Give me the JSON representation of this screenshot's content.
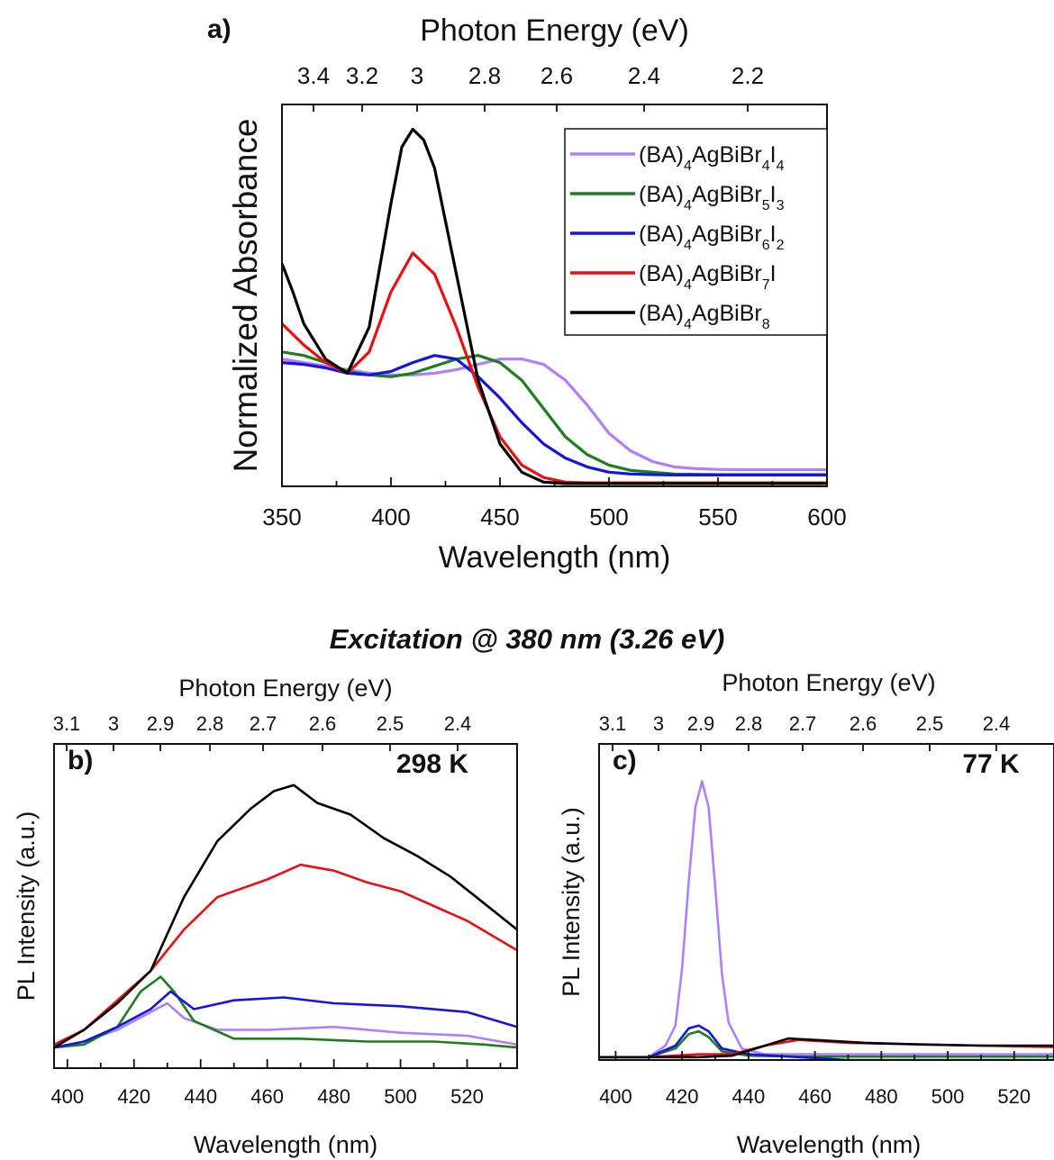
{
  "figure": {
    "heading": "Excitation @ 380 nm (3.26 eV)"
  },
  "chart_data": [
    {
      "id": "a",
      "type": "line",
      "panel_label": "a)",
      "xlabel": "Wavelength (nm)",
      "ylabel": "Normalized Absorbance",
      "top_axis_label": "Photon Energy (eV)",
      "xlim": [
        350,
        600
      ],
      "ylim": [
        0,
        1.08
      ],
      "x_ticks": [
        "350",
        "400",
        "450",
        "500",
        "550",
        "600"
      ],
      "top_ticks": [
        "3.4",
        "3.2",
        "3",
        "2.8",
        "2.6",
        "2.4",
        "2.2"
      ],
      "legend": "top-right",
      "series": [
        {
          "name": "(BA)4AgBiBr4I4",
          "label_main": "(BA)",
          "label_parts": [
            [
              "4",
              "AgBiBr"
            ],
            [
              "4",
              "I"
            ],
            [
              "4",
              ""
            ]
          ],
          "color": "#b07fff",
          "x": [
            350,
            360,
            370,
            380,
            390,
            400,
            410,
            420,
            430,
            440,
            450,
            460,
            470,
            480,
            490,
            500,
            510,
            520,
            530,
            540,
            550,
            560,
            570,
            580,
            590,
            600
          ],
          "y": [
            0.36,
            0.35,
            0.34,
            0.33,
            0.32,
            0.315,
            0.315,
            0.32,
            0.33,
            0.345,
            0.36,
            0.36,
            0.345,
            0.3,
            0.23,
            0.15,
            0.1,
            0.07,
            0.055,
            0.05,
            0.048,
            0.047,
            0.047,
            0.047,
            0.047,
            0.047
          ]
        },
        {
          "name": "(BA)4AgBiBr5I3",
          "label_main": "(BA)",
          "label_parts": [
            [
              "4",
              "AgBiBr"
            ],
            [
              "5",
              "I"
            ],
            [
              "3",
              ""
            ]
          ],
          "color": "#1e7d1e",
          "x": [
            350,
            360,
            370,
            380,
            390,
            400,
            410,
            420,
            430,
            440,
            450,
            460,
            470,
            480,
            490,
            500,
            510,
            520,
            530,
            540,
            550,
            560,
            570,
            580,
            590,
            600
          ],
          "y": [
            0.38,
            0.37,
            0.35,
            0.325,
            0.315,
            0.31,
            0.32,
            0.34,
            0.36,
            0.37,
            0.35,
            0.3,
            0.22,
            0.14,
            0.09,
            0.06,
            0.045,
            0.04,
            0.035,
            0.034,
            0.033,
            0.033,
            0.033,
            0.033,
            0.033,
            0.033
          ]
        },
        {
          "name": "(BA)4AgBiBr6I2",
          "label_main": "(BA)",
          "label_parts": [
            [
              "4",
              "AgBiBr"
            ],
            [
              "6",
              "I"
            ],
            [
              "2",
              ""
            ]
          ],
          "color": "#1515e0",
          "x": [
            350,
            360,
            370,
            380,
            390,
            400,
            410,
            420,
            430,
            440,
            450,
            460,
            470,
            480,
            490,
            500,
            510,
            520,
            530,
            540,
            550,
            560,
            570,
            580,
            590,
            600
          ],
          "y": [
            0.35,
            0.345,
            0.335,
            0.32,
            0.315,
            0.325,
            0.35,
            0.37,
            0.36,
            0.31,
            0.25,
            0.18,
            0.12,
            0.08,
            0.055,
            0.04,
            0.035,
            0.033,
            0.032,
            0.032,
            0.032,
            0.032,
            0.032,
            0.032,
            0.032,
            0.032
          ]
        },
        {
          "name": "(BA)4AgBiBr7I",
          "label_main": "(BA)",
          "label_parts": [
            [
              "4",
              "AgBiBr"
            ],
            [
              "7",
              "I"
            ]
          ],
          "color": "#e81010",
          "x": [
            350,
            360,
            370,
            380,
            390,
            400,
            410,
            420,
            430,
            440,
            450,
            460,
            470,
            480,
            490,
            500,
            510,
            520,
            530,
            540,
            550,
            560,
            570,
            580,
            590,
            600
          ],
          "y": [
            0.46,
            0.4,
            0.35,
            0.32,
            0.38,
            0.55,
            0.66,
            0.6,
            0.45,
            0.28,
            0.14,
            0.06,
            0.025,
            0.012,
            0.01,
            0.01,
            0.01,
            0.01,
            0.01,
            0.01,
            0.01,
            0.01,
            0.01,
            0.01,
            0.01,
            0.01
          ]
        },
        {
          "name": "(BA)4AgBiBr8",
          "label_main": "(BA)",
          "label_parts": [
            [
              "4",
              "AgBiBr"
            ],
            [
              "8",
              ""
            ]
          ],
          "color": "#000000",
          "x": [
            350,
            355,
            360,
            370,
            380,
            390,
            400,
            405,
            410,
            415,
            420,
            430,
            440,
            450,
            460,
            470,
            480,
            490,
            500,
            510,
            520,
            530,
            540,
            550,
            560,
            570,
            580,
            590,
            600
          ],
          "y": [
            0.63,
            0.55,
            0.46,
            0.36,
            0.32,
            0.45,
            0.8,
            0.96,
            1.01,
            0.98,
            0.9,
            0.6,
            0.3,
            0.12,
            0.04,
            0.012,
            0.008,
            0.008,
            0.008,
            0.008,
            0.008,
            0.008,
            0.008,
            0.008,
            0.008,
            0.008,
            0.008,
            0.008,
            0.008
          ]
        }
      ]
    },
    {
      "id": "b",
      "type": "line",
      "panel_label": "b)",
      "annotation": "298 K",
      "xlabel": "Wavelength (nm)",
      "ylabel": "PL Intensity (a.u.)",
      "top_axis_label": "Photon Energy (eV)",
      "xlim": [
        396,
        535
      ],
      "ylim": [
        0,
        1.1
      ],
      "x_ticks": [
        "400",
        "420",
        "440",
        "460",
        "480",
        "500",
        "520"
      ],
      "top_ticks": [
        "3.1",
        "3",
        "2.9",
        "2.8",
        "2.7",
        "2.6",
        "2.5",
        "2.4"
      ],
      "series": [
        {
          "color": "#b07fff",
          "x": [
            396,
            405,
            415,
            425,
            430,
            435,
            445,
            460,
            480,
            500,
            520,
            535
          ],
          "y": [
            0.07,
            0.09,
            0.13,
            0.19,
            0.22,
            0.17,
            0.13,
            0.13,
            0.14,
            0.12,
            0.11,
            0.08
          ]
        },
        {
          "color": "#1e7d1e",
          "x": [
            396,
            405,
            415,
            422,
            428,
            432,
            438,
            450,
            470,
            490,
            510,
            525,
            535
          ],
          "y": [
            0.07,
            0.08,
            0.14,
            0.26,
            0.31,
            0.26,
            0.16,
            0.1,
            0.1,
            0.09,
            0.09,
            0.08,
            0.07
          ]
        },
        {
          "color": "#1515e0",
          "x": [
            396,
            405,
            415,
            425,
            431,
            438,
            450,
            465,
            480,
            500,
            520,
            535
          ],
          "y": [
            0.07,
            0.09,
            0.14,
            0.2,
            0.26,
            0.2,
            0.23,
            0.24,
            0.22,
            0.21,
            0.19,
            0.14
          ]
        },
        {
          "color": "#e81010",
          "x": [
            396,
            405,
            415,
            425,
            435,
            445,
            460,
            470,
            480,
            490,
            500,
            510,
            520,
            535
          ],
          "y": [
            0.08,
            0.13,
            0.23,
            0.33,
            0.47,
            0.58,
            0.64,
            0.69,
            0.67,
            0.63,
            0.6,
            0.55,
            0.5,
            0.4
          ]
        },
        {
          "color": "#000000",
          "x": [
            396,
            405,
            415,
            425,
            435,
            445,
            455,
            462,
            468,
            475,
            485,
            495,
            505,
            515,
            525,
            535
          ],
          "y": [
            0.07,
            0.13,
            0.22,
            0.33,
            0.58,
            0.77,
            0.88,
            0.94,
            0.96,
            0.9,
            0.86,
            0.78,
            0.72,
            0.65,
            0.56,
            0.47
          ]
        }
      ]
    },
    {
      "id": "c",
      "type": "line",
      "panel_label": "c)",
      "annotation": "77 K",
      "xlabel": "Wavelength (nm)",
      "ylabel": "PL Intensity (a.u.)",
      "top_axis_label": "Photon Energy (eV)",
      "xlim": [
        395,
        532
      ],
      "ylim": [
        0,
        1.1
      ],
      "x_ticks": [
        "400",
        "420",
        "440",
        "460",
        "480",
        "500",
        "520"
      ],
      "top_ticks": [
        "3.1",
        "3",
        "2.9",
        "2.8",
        "2.7",
        "2.6",
        "2.5",
        "2.4"
      ],
      "series": [
        {
          "color": "#b07fff",
          "x": [
            395,
            410,
            415,
            418,
            420,
            422,
            424,
            426,
            428,
            430,
            432,
            434,
            438,
            445,
            460,
            480,
            500,
            532
          ],
          "y": [
            0.01,
            0.01,
            0.05,
            0.12,
            0.32,
            0.62,
            0.88,
            0.97,
            0.88,
            0.6,
            0.3,
            0.13,
            0.04,
            0.02,
            0.02,
            0.02,
            0.02,
            0.02
          ]
        },
        {
          "color": "#1e7d1e",
          "x": [
            395,
            410,
            418,
            422,
            425,
            428,
            432,
            440,
            455,
            480,
            532
          ],
          "y": [
            0.01,
            0.01,
            0.04,
            0.09,
            0.1,
            0.08,
            0.03,
            0.015,
            0.012,
            0.012,
            0.012
          ]
        },
        {
          "color": "#1515e0",
          "x": [
            395,
            410,
            418,
            422,
            425,
            428,
            432,
            440,
            455,
            470,
            500,
            532
          ],
          "y": [
            0.01,
            0.01,
            0.05,
            0.11,
            0.12,
            0.1,
            0.04,
            0.02,
            0.01,
            0.0,
            0.0,
            0.0
          ]
        },
        {
          "color": "#e81010",
          "x": [
            395,
            410,
            425,
            435,
            445,
            455,
            470,
            490,
            510,
            532
          ],
          "y": [
            0.01,
            0.01,
            0.02,
            0.02,
            0.05,
            0.07,
            0.06,
            0.055,
            0.05,
            0.045
          ]
        },
        {
          "color": "#000000",
          "x": [
            395,
            410,
            425,
            435,
            445,
            452,
            460,
            475,
            490,
            510,
            532
          ],
          "y": [
            0.01,
            0.01,
            0.01,
            0.015,
            0.05,
            0.075,
            0.07,
            0.06,
            0.055,
            0.05,
            0.05
          ]
        }
      ]
    }
  ]
}
